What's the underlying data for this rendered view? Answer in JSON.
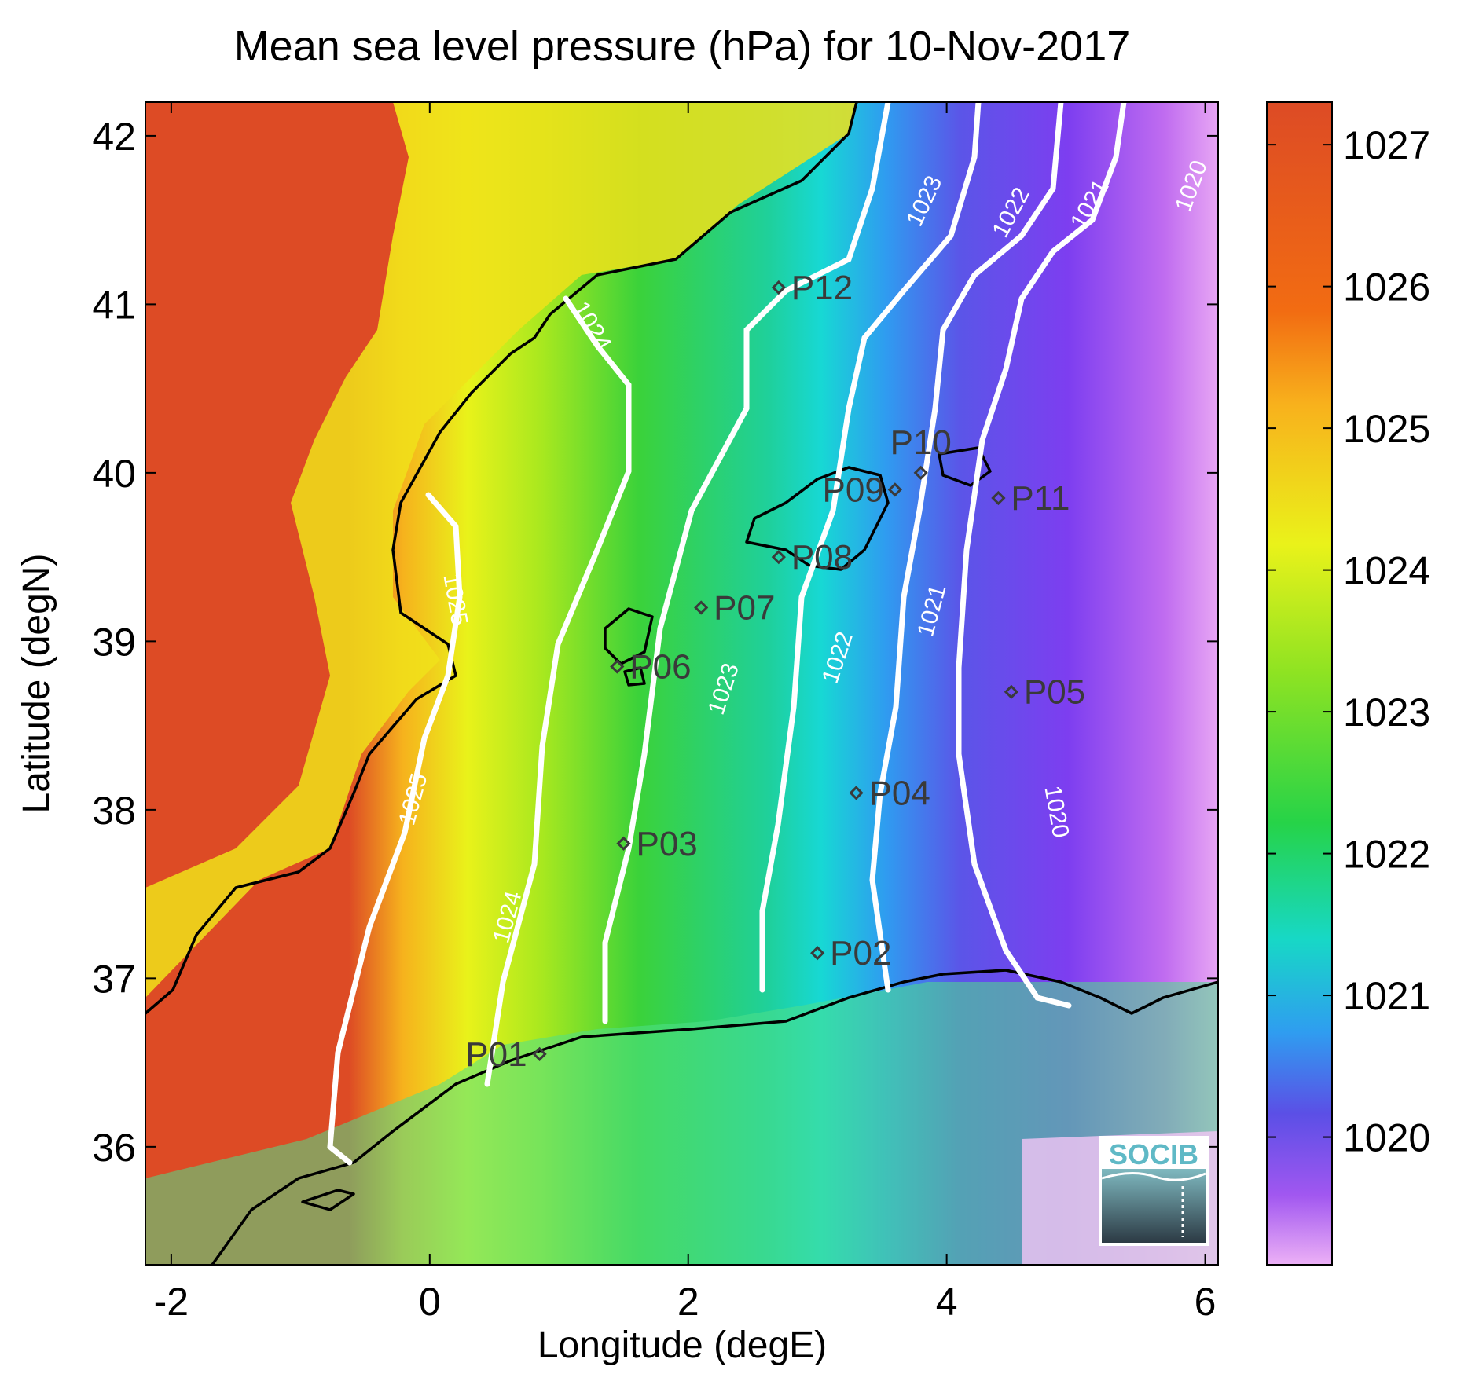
{
  "title": "Mean sea level pressure (hPa) for 10-Nov-2017",
  "xlabel": "Longitude (degE)",
  "ylabel": "Latitude (degN)",
  "x_ticks": [
    "-2",
    "0",
    "2",
    "4",
    "6"
  ],
  "y_ticks": [
    "42",
    "41",
    "40",
    "39",
    "38",
    "37",
    "36"
  ],
  "x_tick_values": [
    -2,
    0,
    2,
    4,
    6
  ],
  "y_tick_values": [
    42,
    41,
    40,
    39,
    38,
    37,
    36
  ],
  "xlim": [
    -2.2,
    6.1
  ],
  "ylim": [
    35.3,
    42.2
  ],
  "colorbar": {
    "ticks": [
      "1027",
      "1026",
      "1025",
      "1024",
      "1023",
      "1022",
      "1021",
      "1020"
    ],
    "tick_values": [
      1027,
      1026,
      1025,
      1024,
      1023,
      1022,
      1021,
      1020
    ],
    "range": [
      1019.1,
      1027.3
    ]
  },
  "contours": [
    {
      "label": "1025",
      "value": 1025
    },
    {
      "label": "1024",
      "value": 1024
    },
    {
      "label": "1023",
      "value": 1023
    },
    {
      "label": "1022",
      "value": 1022
    },
    {
      "label": "1021",
      "value": 1021
    },
    {
      "label": "1020",
      "value": 1020
    }
  ],
  "stations": [
    {
      "label": "P01",
      "lon": 0.85,
      "lat": 36.55
    },
    {
      "label": "P02",
      "lon": 3.0,
      "lat": 37.15
    },
    {
      "label": "P03",
      "lon": 1.5,
      "lat": 37.8
    },
    {
      "label": "P04",
      "lon": 3.3,
      "lat": 38.1
    },
    {
      "label": "P05",
      "lon": 4.5,
      "lat": 38.7
    },
    {
      "label": "P06",
      "lon": 1.45,
      "lat": 38.85
    },
    {
      "label": "P07",
      "lon": 2.1,
      "lat": 39.2
    },
    {
      "label": "P08",
      "lon": 2.7,
      "lat": 39.5
    },
    {
      "label": "P09",
      "lon": 3.6,
      "lat": 39.9
    },
    {
      "label": "P10",
      "lon": 3.8,
      "lat": 40.0
    },
    {
      "label": "P11",
      "lon": 4.4,
      "lat": 39.85
    },
    {
      "label": "P12",
      "lon": 2.7,
      "lat": 41.1
    }
  ],
  "logo_text": "SOCIB"
}
